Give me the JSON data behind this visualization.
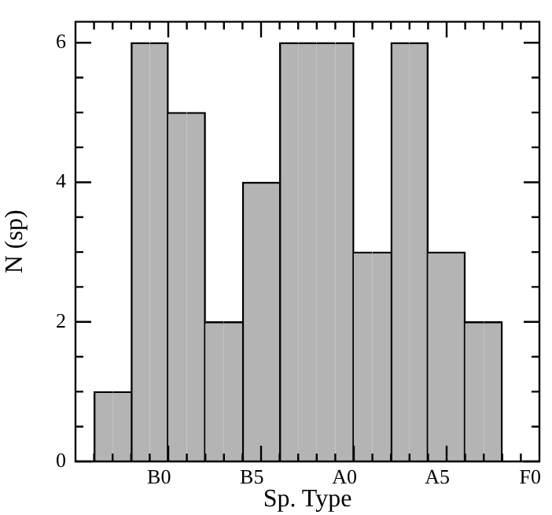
{
  "chart_data": {
    "type": "bar",
    "xlabel": "Sp. Type",
    "ylabel": "N (sp)",
    "categories": [
      null,
      null,
      null,
      null,
      "B0",
      null,
      null,
      null,
      null,
      "B5",
      null,
      null,
      null,
      null,
      "A0",
      null,
      null,
      null,
      null,
      "A5",
      null,
      null,
      null,
      null,
      "F0"
    ],
    "values": [
      null,
      1,
      1,
      6,
      6,
      5,
      5,
      2,
      2,
      4,
      4,
      6,
      6,
      6,
      6,
      3,
      3,
      6,
      6,
      3,
      3,
      2,
      2,
      null,
      null
    ],
    "color": "#b4b4b4",
    "ylim": [
      0,
      6.3
    ],
    "yticks": [
      0,
      {
        "value": 0.5,
        "label": null
      },
      {
        "value": 1,
        "label": null
      },
      {
        "value": 1.5,
        "label": null
      },
      2,
      {
        "value": 2.5,
        "label": null
      },
      {
        "value": 3,
        "label": null
      },
      {
        "value": 3.5,
        "label": null
      },
      4,
      {
        "value": 4.5,
        "label": null
      },
      {
        "value": 5,
        "label": null
      },
      {
        "value": 5.5,
        "label": null
      },
      6
    ],
    "grid": false,
    "legend": false
  }
}
